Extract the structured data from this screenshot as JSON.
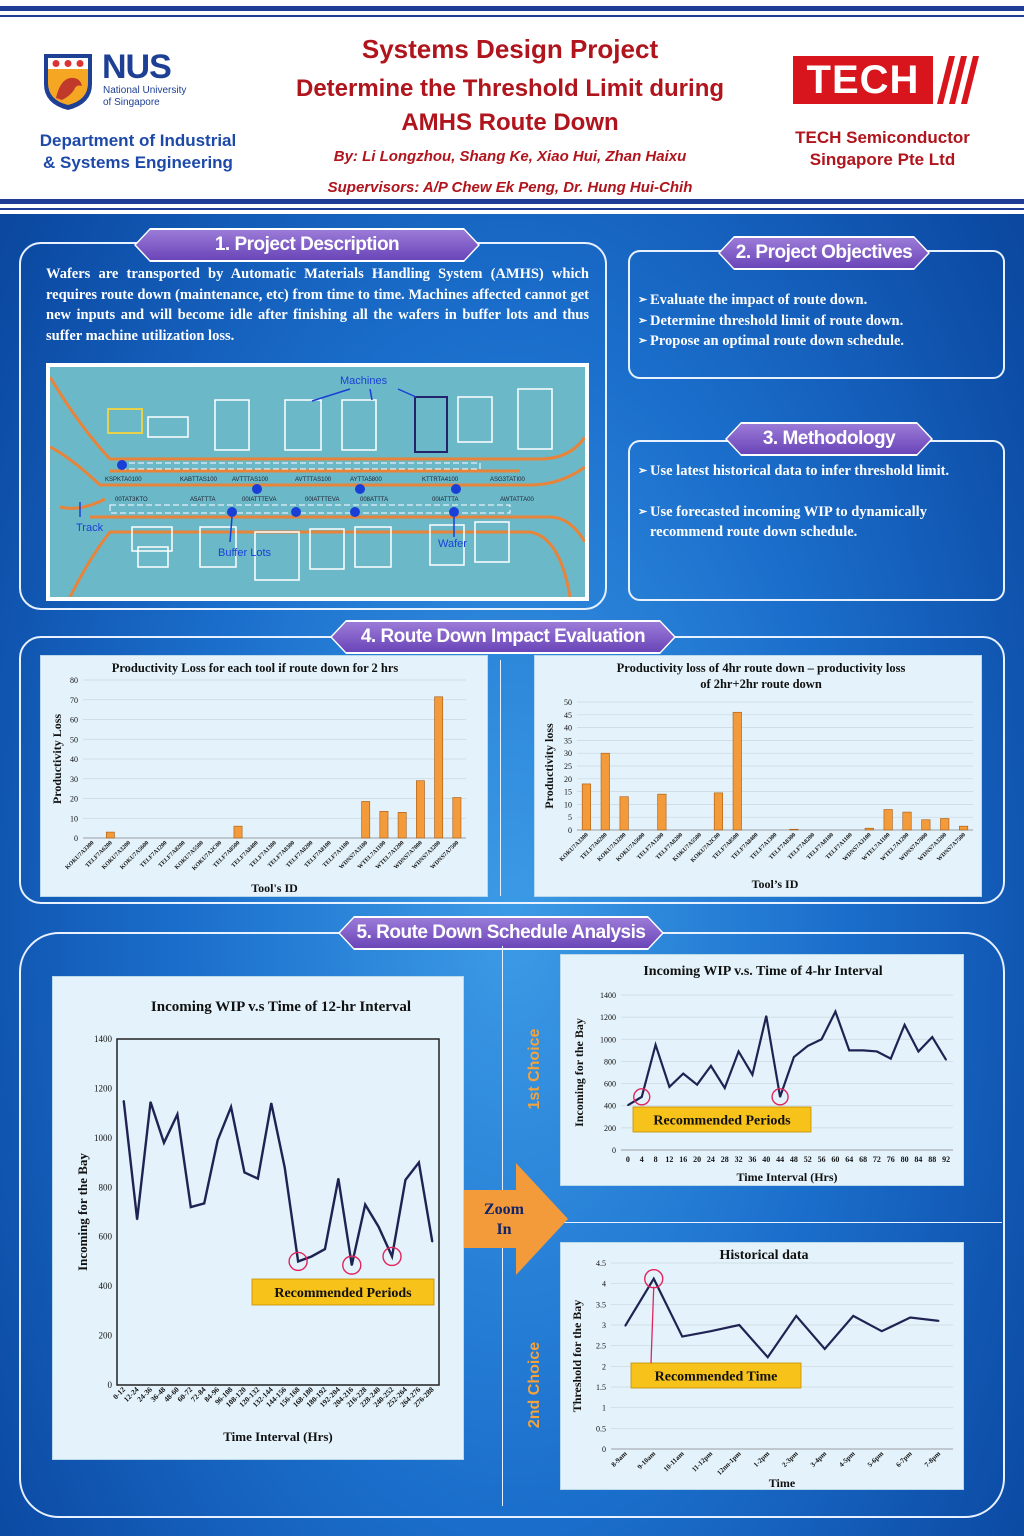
{
  "header": {
    "title": "Systems Design Project",
    "subtitle_line1": "Determine the Threshold Limit during",
    "subtitle_line2": "AMHS Route Down",
    "authors": "By: Li Longzhou, Shang Ke, Xiao Hui, Zhan Haixu",
    "supervisors": "Supervisors: A/P Chew Ek Peng, Dr. Hung Hui-Chih",
    "nus_logo": {
      "name": "NUS",
      "line1": "National University",
      "line2": "of Singapore"
    },
    "department_line1": "Department of Industrial",
    "department_line2": "& Systems Engineering",
    "tech_logo": "TECH",
    "company_line1": "TECH Semiconductor",
    "company_line2": "Singapore Pte Ltd",
    "colors": {
      "title": "#b0141c",
      "department": "#1d4aa8"
    }
  },
  "sections": {
    "s1": {
      "title": "1. Project Description",
      "text": "Wafers are transported by Automatic Materials Handling System (AMHS) which requires route down (maintenance, etc) from time to time. Machines affected cannot get new inputs and will become idle after finishing all the wafers in buffer lots and thus suffer machine utilization loss.",
      "diagram": {
        "machines": "Machines",
        "track": "Track",
        "buffer_lots": "Buffer Lots",
        "wafer": "Wafer",
        "station_labels": [
          "KSPKTA0100",
          "KABTTAS100",
          "AVTTTAS100",
          "AVTTTAS100",
          "AYTTA5800",
          "KTTRTA4100",
          "ASG3TATI00"
        ],
        "mirror_labels": [
          "00TAT3KTO",
          "A5ATTTA",
          "00IATTTEVA",
          "00IATTTEVA",
          "008ATTTA",
          "00IATTTA",
          "AWTATTA00"
        ]
      }
    },
    "s2": {
      "title": "2. Project Objectives",
      "items": [
        "Evaluate the impact of route down.",
        "Determine threshold limit of route down.",
        "Propose an optimal route down schedule."
      ]
    },
    "s3": {
      "title": "3. Methodology",
      "items": [
        "Use latest historical data to infer threshold limit.",
        "Use  forecasted  incoming WIP to dynamically recommend route down schedule."
      ]
    },
    "s4": {
      "title": "4. Route  Down Impact Evaluation"
    },
    "s5": {
      "title": "5. Route Down Schedule Analysis",
      "zoom": "Zoom In",
      "choice1": "1st Choice",
      "choice2": "2nd Choice"
    }
  },
  "chart_data": [
    {
      "id": "c1",
      "type": "bar",
      "title": "Productivity Loss for each tool if route down for 2 hrs",
      "xlabel": "Tool's ID",
      "ylabel": "Productivity Loss",
      "ylim": [
        0,
        80
      ],
      "yticks": [
        0,
        10,
        20,
        30,
        40,
        50,
        60,
        70,
        80
      ],
      "categories": [
        "KOKU7A3300",
        "TELF7A6200",
        "KOKU7A3200",
        "KOKU7A5600",
        "TELF7A1200",
        "TELF7A8200",
        "KOKU7A5500",
        "KOKU7A2C00",
        "TELF7A8500",
        "TELF7A8400",
        "TELF7A1300",
        "TELF7A8300",
        "TELF7A8200",
        "TELF7A8100",
        "TELF7A1100",
        "WDNS7A3100",
        "WTEL7A1100",
        "WTEL7A1200",
        "WDNS7A7000",
        "WDNS7A3200",
        "WDNS7A7500"
      ],
      "values": [
        0,
        3,
        0,
        0,
        0,
        0,
        0,
        0,
        6,
        0,
        0,
        0,
        0,
        0,
        0,
        18.5,
        13.5,
        13,
        29,
        71.5,
        20.5
      ]
    },
    {
      "id": "c2",
      "type": "bar",
      "title": "Productivity loss of 4hr  route down – productivity loss of 2hr+2hr route down",
      "xlabel": "Tool’s ID",
      "ylabel": "Productivity loss",
      "ylim": [
        0,
        50
      ],
      "yticks": [
        0,
        5,
        10,
        15,
        20,
        25,
        30,
        35,
        40,
        45,
        50
      ],
      "categories": [
        "KOKU7A3300",
        "TELF7A6200",
        "KOKU7A3200",
        "KOKU7A5600",
        "TELF7A1200",
        "TELF7A8200",
        "KOKU7A5500",
        "KOKU7A2C00",
        "TELF7A8500",
        "TELF7A8400",
        "TELF7A1300",
        "TELF7A8300",
        "TELF7A8200",
        "TELF7A8100",
        "TELF7A1100",
        "WDNS7A3100",
        "WTEL7A1100",
        "WTEL7A1200",
        "WDNS7A7000",
        "WDNS7A3200",
        "WDNS7A7500"
      ],
      "values": [
        18,
        30,
        13,
        0,
        14,
        0,
        0,
        14.5,
        46,
        0,
        0,
        0.3,
        0,
        0,
        0,
        0.7,
        8,
        7,
        4,
        4.5,
        1.5
      ]
    },
    {
      "id": "c3",
      "type": "line",
      "title": "Incoming WIP  v.s Time of 12-hr Interval",
      "xlabel": "Time Interval (Hrs)",
      "ylabel": "Incoming for the Bay",
      "ylim": [
        0,
        1400
      ],
      "yticks": [
        0,
        200,
        400,
        600,
        800,
        1000,
        1200,
        1400
      ],
      "x": [
        "0-12",
        "12-24",
        "24-36",
        "36-48",
        "48-60",
        "60-72",
        "72-84",
        "84-96",
        "96-108",
        "108-120",
        "120-132",
        "132-144",
        "144-156",
        "156-168",
        "168-180",
        "180-192",
        "192-204",
        "204-216",
        "216-228",
        "228-240",
        "240-252",
        "252-264",
        "264-276",
        "276-288"
      ],
      "values": [
        1150,
        670,
        1145,
        980,
        1095,
        720,
        735,
        990,
        1125,
        860,
        835,
        1140,
        880,
        500,
        520,
        550,
        835,
        485,
        730,
        640,
        520,
        830,
        900,
        580
      ],
      "annotation": "Recommended Periods",
      "highlight_indices": [
        13,
        17,
        20
      ]
    },
    {
      "id": "c4",
      "type": "line",
      "title": "Incoming WIP v.s. Time of 4-hr Interval",
      "xlabel": "Time Interval (Hrs)",
      "ylabel": "Incoming for the Bay",
      "ylim": [
        0,
        1400
      ],
      "yticks": [
        0,
        200,
        400,
        600,
        800,
        1000,
        1200,
        1400
      ],
      "x": [
        "0",
        "4",
        "8",
        "12",
        "16",
        "20",
        "24",
        "28",
        "32",
        "36",
        "40",
        "44",
        "48",
        "52",
        "56",
        "60",
        "64",
        "68",
        "72",
        "76",
        "80",
        "84",
        "88",
        "92"
      ],
      "values": [
        405,
        480,
        950,
        570,
        690,
        590,
        760,
        560,
        890,
        680,
        1210,
        480,
        840,
        940,
        1000,
        1250,
        900,
        900,
        890,
        825,
        1130,
        890,
        1020,
        815
      ],
      "annotation": "Recommended Periods",
      "highlight_indices": [
        1,
        11
      ]
    },
    {
      "id": "c5",
      "type": "line",
      "title": "Historical data",
      "xlabel": "Time",
      "ylabel": "Threshold for the Bay",
      "ylim": [
        0,
        4.5
      ],
      "yticks": [
        0,
        0.5,
        1,
        1.5,
        2,
        2.5,
        3,
        3.5,
        4,
        4.5
      ],
      "x": [
        "8-9am",
        "9-10am",
        "10-11am",
        "11-12pm",
        "12nn-1pm",
        "1-2pm",
        "2-3pm",
        "3-4pm",
        "4-5pm",
        "5-6pm",
        "6-7pm",
        "7-8pm"
      ],
      "values": [
        2.98,
        4.12,
        2.72,
        2.85,
        3.0,
        2.22,
        3.22,
        2.42,
        3.22,
        2.85,
        3.18,
        3.1
      ],
      "annotation": "Recommended Time",
      "highlight_indices": [
        1
      ]
    }
  ]
}
